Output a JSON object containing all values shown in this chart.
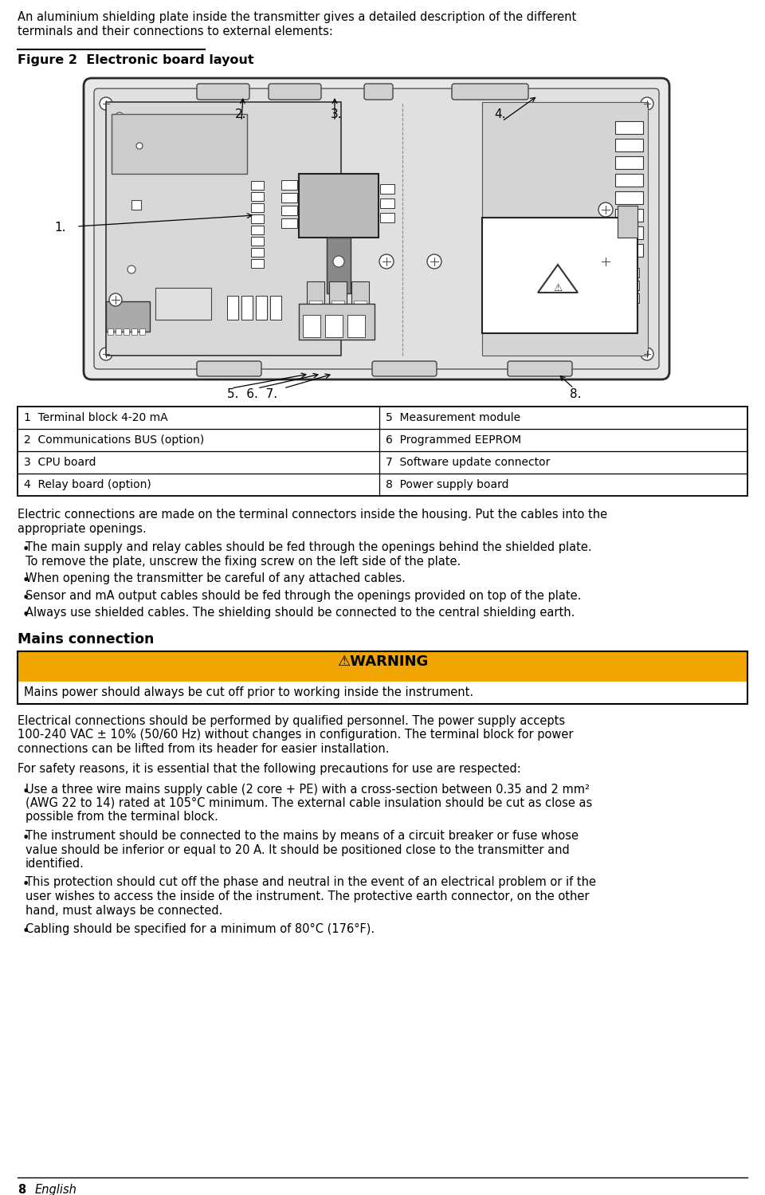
{
  "intro_text_1": "An aluminium shielding plate inside the transmitter gives a detailed description of the different",
  "intro_text_2": "terminals and their connections to external elements:",
  "figure_label": "Figure 2  Electronic board layout",
  "table_rows": [
    [
      "1  Terminal block 4-20 mA",
      "5  Measurement module"
    ],
    [
      "2  Communications BUS (option)",
      "6  Programmed EEPROM"
    ],
    [
      "3  CPU board",
      "7  Software update connector"
    ],
    [
      "4  Relay board (option)",
      "8  Power supply board"
    ]
  ],
  "electric_text_1": "Electric connections are made on the terminal connectors inside the housing. Put the cables into the",
  "electric_text_2": "appropriate openings.",
  "bullet1_line1": "The main supply and relay cables should be fed through the openings behind the shielded plate.",
  "bullet1_line2": "To remove the plate, unscrew the fixing screw on the left side of the plate.",
  "bullet2": "When opening the transmitter be careful of any attached cables.",
  "bullet3": "Sensor and mA output cables should be fed through the openings provided on top of the plate.",
  "bullet4": "Always use shielded cables. The shielding should be connected to the central shielding earth.",
  "mains_connection": "Mains connection",
  "warning_title": "⚠WARNING",
  "warning_bg": "#f0a500",
  "warning_text": "Mains power should always be cut off prior to working inside the instrument.",
  "para1_1": "Electrical connections should be performed by qualified personnel. The power supply accepts",
  "para1_2": "100-240 VAC ± 10% (50/60 Hz) without changes in configuration. The terminal block for power",
  "para1_3": "connections can be lifted from its header for easier installation.",
  "para2": "For safety reasons, it is essential that the following precautions for use are respected:",
  "b2_1_1": "Use a three wire mains supply cable (2 core + PE) with a cross-section between 0.35 and 2 mm²",
  "b2_1_2": "(AWG 22 to 14) rated at 105°C minimum. The external cable insulation should be cut as close as",
  "b2_1_3": "possible from the terminal block.",
  "b2_2_1": "The instrument should be connected to the mains by means of a circuit breaker or fuse whose",
  "b2_2_2": "value should be inferior or equal to 20 A. It should be positioned close to the transmitter and",
  "b2_2_3": "identified.",
  "b2_3_1": "This protection should cut off the phase and neutral in the event of an electrical problem or if the",
  "b2_3_2": "user wishes to access the inside of the instrument. The protective earth connector, on the other",
  "b2_3_3": "hand, must always be connected.",
  "b2_4_1": "Cabling should be specified for a minimum of 80°C (176°F).",
  "footer_num": "8",
  "footer_lang": "English",
  "bg_color": "#ffffff",
  "text_color": "#000000"
}
